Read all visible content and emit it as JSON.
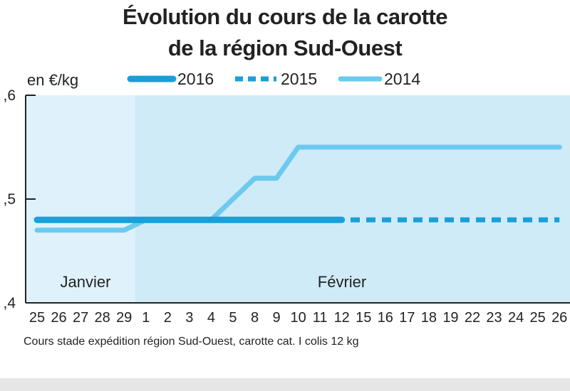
{
  "chart_data": {
    "type": "line",
    "title_lines": [
      "Évolution du cours de la carotte",
      "de la région Sud-Ouest"
    ],
    "unit_label": "en €/kg",
    "ylim": [
      0.4,
      0.6
    ],
    "y_ticks": [
      ",6",
      ",5",
      ",4"
    ],
    "y_tick_values": [
      0.6,
      0.5,
      0.4
    ],
    "categories": [
      "25",
      "26",
      "27",
      "28",
      "29",
      "1",
      "2",
      "3",
      "4",
      "5",
      "8",
      "9",
      "10",
      "11",
      "12",
      "15",
      "16",
      "17",
      "18",
      "19",
      "22",
      "23",
      "24",
      "25",
      "26"
    ],
    "period_labels": [
      {
        "text": "Janvier",
        "from": "25",
        "to": "29"
      },
      {
        "text": "Février",
        "from": "1",
        "to": "26"
      }
    ],
    "series": [
      {
        "name": "2016",
        "style": "solid-thick",
        "color": "#1a9fd8",
        "values": [
          0.48,
          0.48,
          0.48,
          0.48,
          0.48,
          0.48,
          0.48,
          0.48,
          0.48,
          0.48,
          0.48,
          0.48,
          0.48,
          0.48,
          0.48,
          null,
          null,
          null,
          null,
          null,
          null,
          null,
          null,
          null,
          null
        ]
      },
      {
        "name": "2015",
        "style": "dashed",
        "color": "#1a9fd8",
        "values": [
          0.48,
          0.48,
          0.48,
          0.48,
          0.48,
          0.48,
          0.48,
          0.48,
          0.48,
          0.48,
          0.48,
          0.48,
          0.48,
          0.48,
          0.48,
          0.48,
          0.48,
          0.48,
          0.48,
          0.48,
          0.48,
          0.48,
          0.48,
          0.48,
          0.48
        ]
      },
      {
        "name": "2014",
        "style": "solid-light",
        "color": "#6ccaee",
        "values": [
          0.47,
          0.47,
          0.47,
          0.47,
          0.47,
          0.48,
          0.48,
          0.48,
          0.48,
          0.5,
          0.52,
          0.52,
          0.55,
          0.55,
          0.55,
          0.55,
          0.55,
          0.55,
          0.55,
          0.55,
          0.55,
          0.55,
          0.55,
          0.55,
          0.55
        ]
      }
    ],
    "footnote": "Cours stade expédition région Sud-Ouest, carotte cat. I colis 12 kg",
    "colors": {
      "january_bg": "#dff2fb",
      "february_bg": "#cfebf8",
      "axis": "#222222"
    }
  }
}
